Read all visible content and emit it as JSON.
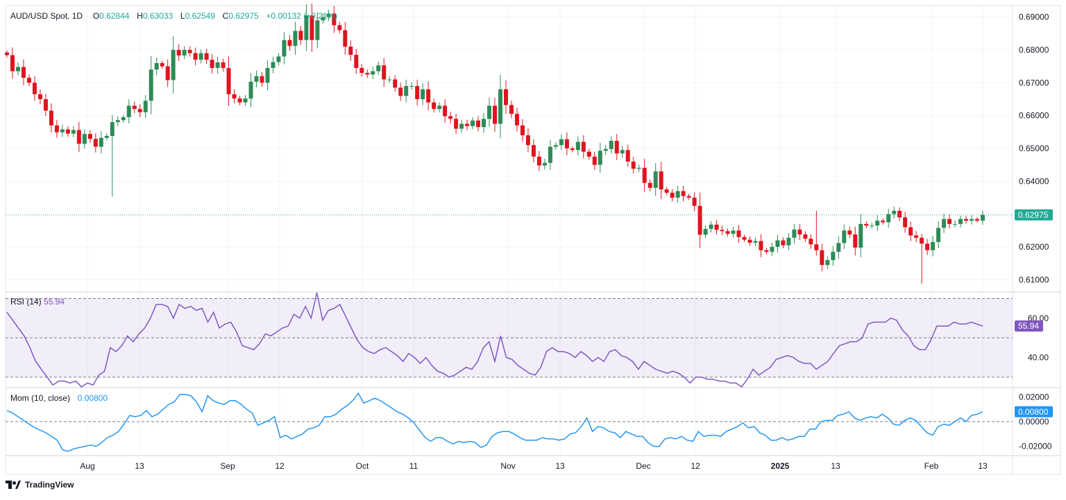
{
  "header": {
    "symbol": "AUD/USD Spot, 1D",
    "o_label": "O",
    "o_value": "0.62844",
    "h_label": "H",
    "h_value": "0.63033",
    "l_label": "L",
    "l_value": "0.62549",
    "c_label": "C",
    "c_value": "0.62975",
    "change": "+0.00132 (+0.21%)"
  },
  "rsi": {
    "label": "RSI (14)",
    "value": "55.94"
  },
  "mom": {
    "label": "Mom (10, close)",
    "value": "0.00800"
  },
  "last_price_badge": "0.62975",
  "footer": {
    "brand": "TradingView"
  },
  "colors": {
    "up": "#26a17b",
    "down": "#f23645",
    "candle_up": "#2e8b57",
    "candle_down": "#e0141e",
    "rsi_line": "#7e57c2",
    "mom_line": "#2196f3",
    "badge": "#22ab94"
  },
  "chart_data": [
    {
      "type": "candlestick",
      "title": "AUD/USD Spot, 1D",
      "y_ticks": [
        "0.69000",
        "0.68000",
        "0.67000",
        "0.66000",
        "0.65000",
        "0.64000",
        "0.62000",
        "0.61000"
      ],
      "ylim": [
        0.6065,
        0.6935
      ],
      "x_ticks": [
        "Aug",
        "13",
        "Sep",
        "12",
        "Oct",
        "11",
        "Nov",
        "13",
        "Dec",
        "12",
        "2025",
        "13",
        "Feb",
        "13"
      ],
      "last_close": 0.62975,
      "closes": [
        0.6784,
        0.6735,
        0.6748,
        0.6715,
        0.67,
        0.6665,
        0.665,
        0.6615,
        0.657,
        0.6549,
        0.6558,
        0.6545,
        0.6556,
        0.6514,
        0.6544,
        0.6529,
        0.6505,
        0.6532,
        0.6538,
        0.658,
        0.6586,
        0.6595,
        0.663,
        0.662,
        0.661,
        0.6645,
        0.674,
        0.676,
        0.675,
        0.6708,
        0.68,
        0.6783,
        0.68,
        0.679,
        0.677,
        0.679,
        0.677,
        0.6745,
        0.6762,
        0.6745,
        0.6665,
        0.6652,
        0.664,
        0.6652,
        0.6703,
        0.672,
        0.67,
        0.6745,
        0.6763,
        0.678,
        0.683,
        0.6812,
        0.6858,
        0.683,
        0.6905,
        0.683,
        0.689,
        0.69,
        0.691,
        0.6875,
        0.686,
        0.681,
        0.6785,
        0.6745,
        0.673,
        0.6725,
        0.6735,
        0.6753,
        0.671,
        0.671,
        0.6685,
        0.666,
        0.669,
        0.669,
        0.665,
        0.668,
        0.664,
        0.662,
        0.663,
        0.6598,
        0.659,
        0.656,
        0.6575,
        0.6568,
        0.6585,
        0.6565,
        0.659,
        0.663,
        0.6575,
        0.668,
        0.6632,
        0.6605,
        0.657,
        0.654,
        0.651,
        0.6475,
        0.6448,
        0.6456,
        0.6505,
        0.651,
        0.6528,
        0.65,
        0.6495,
        0.652,
        0.649,
        0.6475,
        0.645,
        0.6493,
        0.6498,
        0.6523,
        0.6485,
        0.6495,
        0.646,
        0.6438,
        0.6441,
        0.6395,
        0.638,
        0.643,
        0.6375,
        0.6365,
        0.635,
        0.637,
        0.6355,
        0.635,
        0.6325,
        0.6237,
        0.6255,
        0.6268,
        0.6252,
        0.6248,
        0.624,
        0.625,
        0.623,
        0.6222,
        0.6213,
        0.6218,
        0.619,
        0.6185,
        0.62,
        0.622,
        0.6205,
        0.6228,
        0.6253,
        0.6238,
        0.6225,
        0.6208,
        0.619,
        0.6145,
        0.616,
        0.6185,
        0.6212,
        0.625,
        0.6238,
        0.6198,
        0.627,
        0.6265,
        0.6265,
        0.628,
        0.6275,
        0.63,
        0.631,
        0.629,
        0.626,
        0.6235,
        0.6228,
        0.621,
        0.619,
        0.6215,
        0.6258,
        0.6285,
        0.627,
        0.627,
        0.6285,
        0.628,
        0.6285,
        0.628,
        0.6298
      ]
    },
    {
      "type": "line",
      "title": "RSI (14)",
      "y_ticks": [
        "60.00",
        "40.00"
      ],
      "bands": [
        30,
        50,
        70
      ],
      "ylim": [
        25,
        73
      ],
      "values": [
        63,
        59,
        55,
        51,
        45,
        38,
        34,
        30,
        26,
        28,
        28,
        27,
        28,
        25,
        27,
        26,
        31,
        33,
        45,
        43,
        46,
        51,
        48,
        52,
        55,
        60,
        67,
        67,
        66,
        60,
        67,
        65,
        66,
        64,
        65,
        58,
        63,
        55,
        57,
        58,
        53,
        46,
        45,
        44,
        47,
        52,
        51,
        53,
        55,
        56,
        62,
        60,
        66,
        60,
        73,
        59,
        64,
        65,
        67,
        61,
        55,
        49,
        45,
        43,
        42,
        44,
        45,
        43,
        41,
        38,
        42,
        40,
        37,
        40,
        36,
        33,
        32,
        30,
        31,
        33,
        35,
        34,
        38,
        45,
        48,
        38,
        51,
        40,
        39,
        36,
        34,
        32,
        31,
        35,
        43,
        45,
        43,
        43,
        42,
        40,
        43,
        41,
        38,
        40,
        38,
        43,
        44,
        41,
        40,
        38,
        34,
        38,
        36,
        34,
        33,
        32,
        33,
        32,
        30,
        27,
        30,
        30,
        29,
        29,
        28,
        28,
        27,
        27,
        25,
        29,
        34,
        31,
        33,
        35,
        39,
        40,
        41,
        40,
        38,
        37,
        37,
        34,
        36,
        38,
        42,
        46,
        47,
        48,
        48,
        50,
        57,
        58,
        58,
        58,
        60,
        59,
        54,
        51,
        46,
        44,
        44,
        49,
        56,
        56,
        56,
        58,
        57,
        57,
        58,
        57,
        56
      ]
    },
    {
      "type": "line",
      "title": "Mom (10, close)",
      "y_ticks": [
        "0.02000",
        "0.00000",
        "-0.02000"
      ],
      "zero_line": 0,
      "ylim": [
        -0.027,
        0.027
      ],
      "last_value": 0.008,
      "values": [
        0.009,
        0.007,
        0.004,
        0.001,
        -0.002,
        -0.005,
        -0.007,
        -0.009,
        -0.012,
        -0.015,
        -0.023,
        -0.024,
        -0.022,
        -0.021,
        -0.02,
        -0.019,
        -0.02,
        -0.017,
        -0.013,
        -0.011,
        -0.008,
        -0.002,
        0.005,
        0.004,
        0.005,
        0.009,
        0.004,
        0.006,
        0.01,
        0.014,
        0.016,
        0.022,
        0.022,
        0.021,
        0.016,
        0.008,
        0.021,
        0.017,
        0.015,
        0.014,
        0.017,
        0.017,
        0.014,
        0.01,
        0.007,
        -0.003,
        -0.001,
        0.001,
        0.004,
        -0.013,
        -0.011,
        -0.014,
        -0.012,
        -0.01,
        -0.006,
        -0.005,
        -0.003,
        0.004,
        0.004,
        0.006,
        0.01,
        0.013,
        0.017,
        0.023,
        0.015,
        0.017,
        0.019,
        0.017,
        0.014,
        0.011,
        0.008,
        0.006,
        0.003,
        -0.001,
        -0.007,
        -0.013,
        -0.016,
        -0.013,
        -0.013,
        -0.016,
        -0.018,
        -0.016,
        -0.017,
        -0.016,
        -0.017,
        -0.021,
        -0.019,
        -0.012,
        -0.009,
        -0.008,
        -0.008,
        -0.01,
        -0.013,
        -0.015,
        -0.015,
        -0.015,
        -0.013,
        -0.014,
        -0.014,
        -0.015,
        -0.014,
        -0.01,
        -0.009,
        -0.004,
        0.003,
        -0.008,
        -0.004,
        -0.005,
        -0.008,
        -0.009,
        -0.013,
        -0.008,
        -0.01,
        -0.012,
        -0.012,
        -0.017,
        -0.02,
        -0.02,
        -0.014,
        -0.013,
        -0.014,
        -0.012,
        -0.015,
        -0.016,
        -0.008,
        -0.012,
        -0.011,
        -0.011,
        -0.012,
        -0.008,
        -0.006,
        -0.004,
        -0.001,
        -0.005,
        -0.004,
        -0.009,
        -0.011,
        -0.015,
        -0.015,
        -0.013,
        -0.015,
        -0.014,
        -0.012,
        -0.012,
        -0.006,
        -0.006,
        0.0,
        0.001,
        0.001,
        0.005,
        0.006,
        0.008,
        0.003,
        0.001,
        0.003,
        0.004,
        0.003,
        0.006,
        0.003,
        -0.002,
        -0.003,
        0.001,
        0.003,
        0.001,
        -0.004,
        -0.009,
        -0.011,
        -0.004,
        -0.002,
        -0.003,
        0.0,
        0.003,
        0.0,
        0.005,
        0.006,
        0.008
      ]
    }
  ]
}
